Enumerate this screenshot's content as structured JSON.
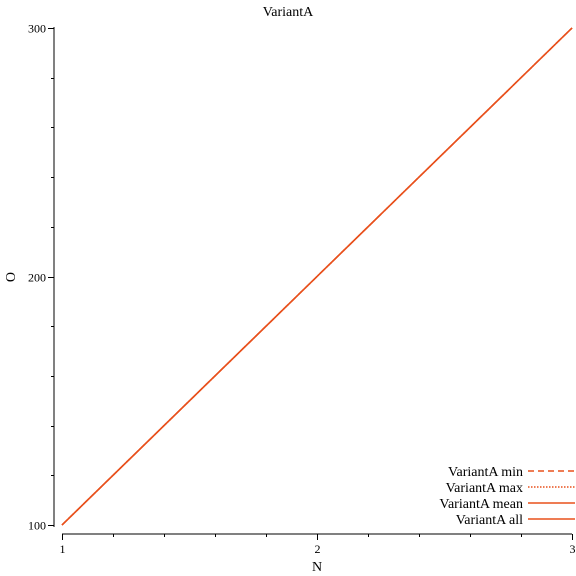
{
  "chart_data": {
    "type": "line",
    "title": "VariantA",
    "xlabel": "N",
    "ylabel": "O",
    "xlim": [
      1,
      3
    ],
    "ylim": [
      100,
      300
    ],
    "x_ticks": [
      1,
      2,
      3
    ],
    "y_ticks": [
      100,
      200,
      300
    ],
    "x_minor_ticks": [
      1.2,
      1.4,
      1.6,
      1.8,
      2.2,
      2.4,
      2.6,
      2.8
    ],
    "y_minor_ticks": [
      120,
      140,
      160,
      180,
      220,
      240,
      260,
      280
    ],
    "x_tick_labels": [
      "1",
      "2",
      "3"
    ],
    "y_tick_labels": [
      "100",
      "200",
      "300"
    ],
    "grid": false,
    "legend_position": "bottom-right",
    "series": [
      {
        "name": "VariantA min",
        "x": [
          1,
          2,
          3
        ],
        "values": [
          100,
          200,
          300
        ],
        "color": "#e8501c",
        "dash": "dashed"
      },
      {
        "name": "VariantA max",
        "x": [
          1,
          2,
          3
        ],
        "values": [
          100,
          200,
          300
        ],
        "color": "#e8501c",
        "dash": "dotted"
      },
      {
        "name": "VariantA mean",
        "x": [
          1,
          2,
          3
        ],
        "values": [
          100,
          200,
          300
        ],
        "color": "#e8501c",
        "dash": "solid"
      },
      {
        "name": "VariantA all",
        "x": [
          1,
          2,
          3
        ],
        "values": [
          100,
          200,
          300
        ],
        "color": "#e8501c",
        "dash": "solid"
      }
    ]
  }
}
